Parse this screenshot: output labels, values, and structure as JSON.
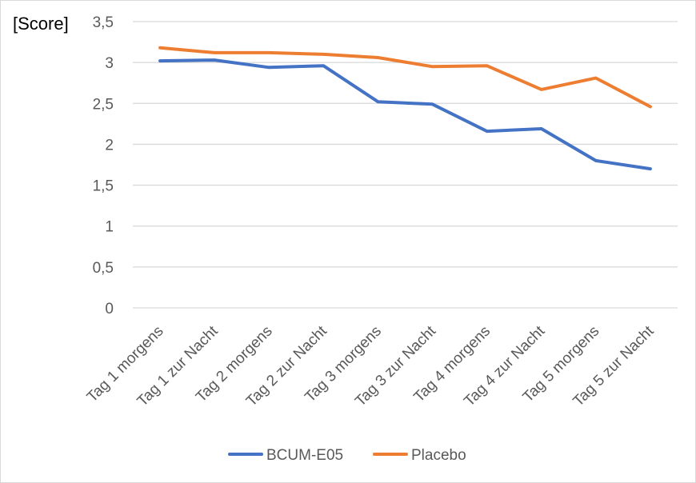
{
  "chart_data": {
    "type": "line",
    "title": "",
    "ylabel": "[Score]",
    "xlabel": "",
    "ylim": [
      0,
      3.5
    ],
    "yticks": [
      0,
      0.5,
      1,
      1.5,
      2,
      2.5,
      3,
      3.5
    ],
    "ytick_labels": [
      "0",
      "0,5",
      "1",
      "1,5",
      "2",
      "2,5",
      "3",
      "3,5"
    ],
    "grid": true,
    "legend_position": "bottom",
    "categories": [
      "Tag 1 morgens",
      "Tag 1 zur Nacht",
      "Tag 2 morgens",
      "Tag 2 zur Nacht",
      "Tag 3 morgens",
      "Tag 3 zur Nacht",
      "Tag 4 morgens",
      "Tag 4 zur Nacht",
      "Tag 5 morgens",
      "Tag 5 zur Nacht"
    ],
    "series": [
      {
        "name": "BCUM-E05",
        "color": "#4472c4",
        "values": [
          3.02,
          3.03,
          2.94,
          2.96,
          2.52,
          2.49,
          2.16,
          2.19,
          1.8,
          1.7
        ]
      },
      {
        "name": "Placebo",
        "color": "#ed7d31",
        "values": [
          3.18,
          3.12,
          3.12,
          3.1,
          3.06,
          2.95,
          2.96,
          2.67,
          2.81,
          2.46
        ]
      }
    ]
  }
}
